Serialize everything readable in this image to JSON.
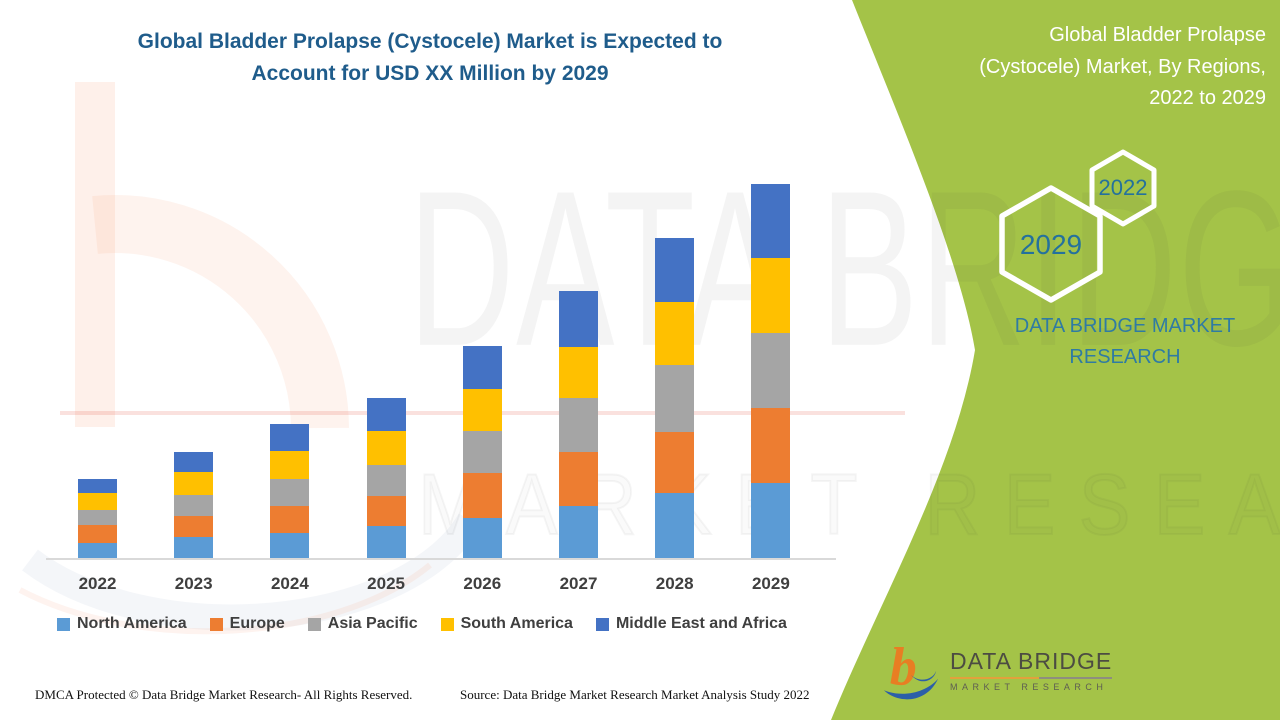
{
  "header": {
    "title_lines": [
      "Global Bladder Prolapse (Cystocele) Market is Expected to",
      "Account for USD XX Million by 2029"
    ]
  },
  "side_panel": {
    "title_lines": [
      "Global Bladder Prolapse",
      "(Cystocele) Market, By Regions,",
      "2022 to 2029"
    ],
    "hexagon_years": {
      "small": "2022",
      "large": "2029"
    },
    "brand_text": "DATA BRIDGE MARKET RESEARCH"
  },
  "chart_data": {
    "type": "bar",
    "stacked": true,
    "title": "Global Bladder Prolapse (Cystocele) Market is Expected to Account for USD XX Million by 2029",
    "categories": [
      "2022",
      "2023",
      "2024",
      "2025",
      "2026",
      "2027",
      "2028",
      "2029"
    ],
    "series": [
      {
        "name": "North America",
        "color": "#5B9BD5",
        "values": [
          16,
          22,
          26,
          33,
          41,
          53,
          66,
          76
        ]
      },
      {
        "name": "Europe",
        "color": "#ED7D31",
        "values": [
          18,
          21,
          27,
          30,
          45,
          54,
          61,
          75
        ]
      },
      {
        "name": "Asia Pacific",
        "color": "#A5A5A5",
        "values": [
          15,
          21,
          27,
          31,
          42,
          54,
          67,
          75
        ]
      },
      {
        "name": "South America",
        "color": "#FFC000",
        "values": [
          17,
          23,
          28,
          34,
          42,
          51,
          63,
          75
        ]
      },
      {
        "name": "Middle East and Africa",
        "color": "#4472C4",
        "values": [
          14,
          20,
          27,
          33,
          43,
          56,
          64,
          74
        ]
      }
    ],
    "stack_order": "bottom-to-top as listed",
    "totals": [
      80,
      107,
      135,
      161,
      213,
      268,
      321,
      375
    ],
    "xlabel": "",
    "ylabel": "",
    "y_axis": {
      "labels_visible": false,
      "unit_hint": "USD XX Million (exact values not disclosed; series values are relative bar heights)"
    },
    "grid": false,
    "legend_position": "bottom"
  },
  "watermark": {
    "line1": "DATA BRIDGE",
    "line2": "MARKET RESEARCH"
  },
  "footer": {
    "left": "DMCA Protected © Data Bridge Market Research- All Rights Reserved.",
    "right": "Source: Data Bridge Market Research Market Analysis Study 2022"
  },
  "logo": {
    "monogram": "b",
    "name": "DATA BRIDGE",
    "tagline": "MARKET RESEARCH"
  },
  "colors": {
    "panel_green": "#A4C348",
    "title_blue": "#1F5C8B",
    "hexagon_year_teal": "#24719D",
    "brand_teal": "#2F7BA3",
    "label_gray": "#3F3F3F",
    "axis_gray": "#D9D9D9"
  }
}
